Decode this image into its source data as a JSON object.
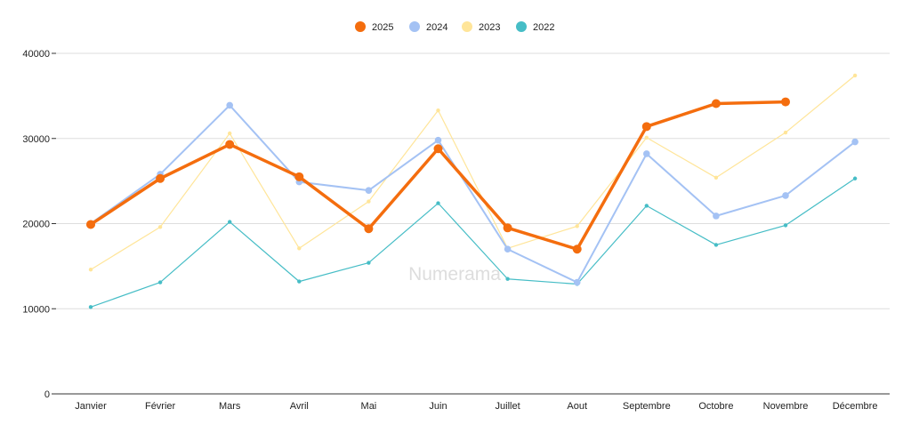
{
  "chart_data": {
    "type": "line",
    "title": "",
    "xlabel": "",
    "ylabel": "",
    "categories": [
      "Janvier",
      "Février",
      "Mars",
      "Avril",
      "Mai",
      "Juin",
      "Juillet",
      "Aout",
      "Septembre",
      "Octobre",
      "Novembre",
      "Décembre"
    ],
    "ylim": [
      0,
      40000
    ],
    "yticks": [
      "0",
      "10000",
      "20000",
      "30000",
      "40000"
    ],
    "grid": true,
    "legend_position": "top-center",
    "series": [
      {
        "name": "2025",
        "color": "#f46d0e",
        "values": [
          19900,
          25300,
          29300,
          25500,
          19400,
          28800,
          19500,
          17000,
          31400,
          34100,
          34300,
          null
        ]
      },
      {
        "name": "2024",
        "color": "#a4c2f4",
        "values": [
          20000,
          25800,
          33900,
          24900,
          23900,
          29800,
          17000,
          13100,
          28200,
          20900,
          23300,
          29600
        ]
      },
      {
        "name": "2023",
        "color": "#ffe599",
        "values": [
          14600,
          19600,
          30600,
          17100,
          22600,
          33300,
          17100,
          19700,
          30100,
          25400,
          30700,
          37400
        ]
      },
      {
        "name": "2022",
        "color": "#46bdc6",
        "values": [
          10200,
          13100,
          20200,
          13200,
          15400,
          22400,
          13500,
          12900,
          22100,
          17500,
          19800,
          25300
        ]
      }
    ]
  },
  "watermark": "Numerama"
}
